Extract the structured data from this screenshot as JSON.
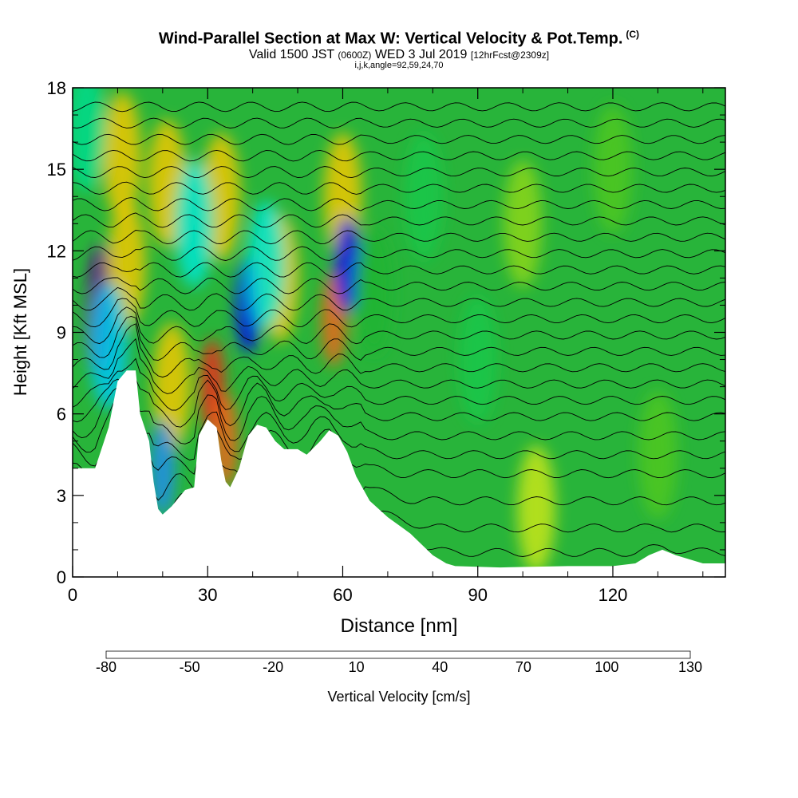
{
  "title": {
    "main": "Wind-Parallel Section at Max W: Vertical Velocity & Pot.Temp.",
    "copyright": "(C)",
    "valid_pre": "Valid 1500 JST",
    "valid_utc": "(0600Z)",
    "valid_date": "WED 3 Jul 2019",
    "forecast": "[12hrFcst@2309z]",
    "indices": "i,j,k,angle=92,59,24,70"
  },
  "chart_data": {
    "type": "heatmap",
    "xlabel": "Distance [nm]",
    "ylabel": "Height [Kft MSL]",
    "xlim": [
      0,
      145
    ],
    "ylim": [
      0,
      18
    ],
    "x_ticks": [
      "0",
      "30",
      "60",
      "90",
      "120"
    ],
    "y_ticks": [
      "0",
      "3",
      "6",
      "9",
      "12",
      "15",
      "18"
    ],
    "terrain_kft": [
      [
        0,
        4.0
      ],
      [
        5,
        4.0
      ],
      [
        8,
        5.5
      ],
      [
        10,
        7.2
      ],
      [
        12,
        7.6
      ],
      [
        14,
        7.6
      ],
      [
        15,
        6.0
      ],
      [
        17,
        5.0
      ],
      [
        18,
        3.5
      ],
      [
        19,
        2.5
      ],
      [
        20,
        2.3
      ],
      [
        22,
        2.6
      ],
      [
        25,
        3.2
      ],
      [
        27,
        3.3
      ],
      [
        28,
        5.2
      ],
      [
        30,
        5.8
      ],
      [
        32,
        5.5
      ],
      [
        33,
        4.3
      ],
      [
        34,
        3.5
      ],
      [
        35,
        3.3
      ],
      [
        37,
        4.0
      ],
      [
        39,
        5.2
      ],
      [
        41,
        5.6
      ],
      [
        43,
        5.5
      ],
      [
        45,
        5.0
      ],
      [
        47,
        4.7
      ],
      [
        50,
        4.7
      ],
      [
        52,
        4.5
      ],
      [
        55,
        5.0
      ],
      [
        57,
        5.4
      ],
      [
        59,
        5.2
      ],
      [
        61,
        4.6
      ],
      [
        63,
        3.7
      ],
      [
        66,
        2.8
      ],
      [
        70,
        2.2
      ],
      [
        75,
        1.6
      ],
      [
        80,
        0.8
      ],
      [
        83,
        0.5
      ],
      [
        85,
        0.4
      ],
      [
        95,
        0.35
      ],
      [
        110,
        0.4
      ],
      [
        120,
        0.4
      ],
      [
        125,
        0.5
      ],
      [
        128,
        0.8
      ],
      [
        131,
        1.0
      ],
      [
        134,
        0.8
      ],
      [
        140,
        0.5
      ],
      [
        145,
        0.5
      ]
    ],
    "velocity_features_cm_s": [
      {
        "x": 5.5,
        "y": 9.2,
        "w": 130
      },
      {
        "x": 6.2,
        "y": 10.5,
        "w": 120
      },
      {
        "x": 11,
        "y": 15.5,
        "w": 40
      },
      {
        "x": 12,
        "y": 11.5,
        "w": 40
      },
      {
        "x": 21,
        "y": 14.5,
        "w": 40
      },
      {
        "x": 22,
        "y": 7.0,
        "w": 40
      },
      {
        "x": 31,
        "y": 7.0,
        "w": 85
      },
      {
        "x": 34,
        "y": 5.0,
        "w": 70
      },
      {
        "x": 33,
        "y": 14.0,
        "w": 40
      },
      {
        "x": 46,
        "y": 11.0,
        "w": 40
      },
      {
        "x": 58,
        "y": 9.5,
        "w": 70
      },
      {
        "x": 60,
        "y": 14.0,
        "w": 40
      },
      {
        "x": 8,
        "y": 8.5,
        "w": -50
      },
      {
        "x": 20,
        "y": 4.0,
        "w": -55
      },
      {
        "x": 27,
        "y": 13.0,
        "w": -40
      },
      {
        "x": 39,
        "y": 10.0,
        "w": -75
      },
      {
        "x": 43,
        "y": 11.5,
        "w": -40
      },
      {
        "x": 61,
        "y": 11.5,
        "w": -75
      },
      {
        "x": 3,
        "y": 16.5,
        "w": -30
      },
      {
        "x": 67,
        "y": 10.5,
        "w": -10
      },
      {
        "x": 90,
        "y": 8.0,
        "w": -20
      },
      {
        "x": 103,
        "y": 2.5,
        "w": 20
      },
      {
        "x": 100,
        "y": 13.0,
        "w": 10
      },
      {
        "x": 130,
        "y": 4.5,
        "w": 0
      },
      {
        "x": 120,
        "y": 15.0,
        "w": 5
      },
      {
        "x": 78,
        "y": 14.0,
        "w": -15
      }
    ],
    "theta_contours_kft": [
      {
        "label": "",
        "base": 0.9
      },
      {
        "label": "",
        "base": 1.8
      },
      {
        "label": "",
        "base": 2.8
      },
      {
        "label": "",
        "base": 3.8
      },
      {
        "label": "",
        "base": 4.5
      },
      {
        "label": "",
        "base": 5.2
      },
      {
        "label": "",
        "base": 5.9
      },
      {
        "label": "",
        "base": 6.5
      },
      {
        "label": "",
        "base": 7.1
      },
      {
        "label": "",
        "base": 7.7
      },
      {
        "label": "",
        "base": 8.3
      },
      {
        "label": "",
        "base": 8.9
      },
      {
        "label": "",
        "base": 9.5
      },
      {
        "label": "",
        "base": 10.1
      },
      {
        "label": "",
        "base": 10.7
      },
      {
        "label": "",
        "base": 11.3
      },
      {
        "label": "",
        "base": 11.9
      },
      {
        "label": "",
        "base": 12.5
      },
      {
        "label": "",
        "base": 13.1
      },
      {
        "label": "",
        "base": 13.7
      },
      {
        "label": "",
        "base": 14.3
      },
      {
        "label": "",
        "base": 14.9
      },
      {
        "label": "",
        "base": 15.5
      },
      {
        "label": "",
        "base": 16.1
      },
      {
        "label": "",
        "base": 16.7
      },
      {
        "label": "",
        "base": 17.3
      }
    ],
    "colorbar": {
      "label": "Vertical Velocity [cm/s]",
      "min": -80,
      "max": 130,
      "step": 10,
      "tick_labels": [
        "-80",
        "-50",
        "-20",
        "10",
        "40",
        "70",
        "100",
        "130"
      ],
      "colors": [
        "#0000f0",
        "#1a40f0",
        "#1e8cf0",
        "#00c8f0",
        "#00e6d2",
        "#00dc8c",
        "#14c84a",
        "#1eb432",
        "#50c81e",
        "#8cd614",
        "#c8e614",
        "#f0e600",
        "#f0c800",
        "#f0aa00",
        "#f08c00",
        "#f06414",
        "#f02814",
        "#e6001e",
        "#b4003c",
        "#8c0064",
        "#64008c"
      ]
    }
  }
}
